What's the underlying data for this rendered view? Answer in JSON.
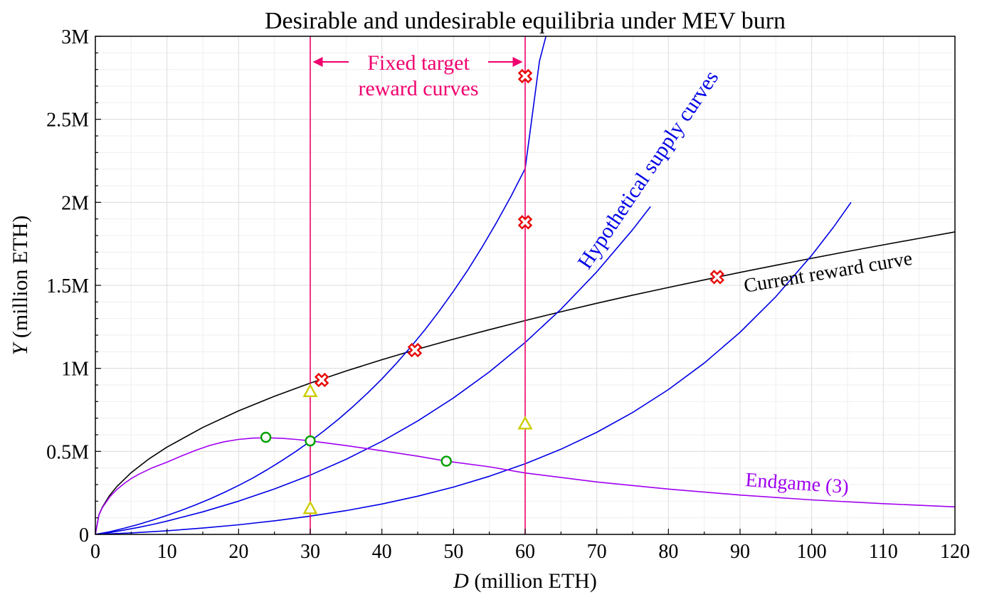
{
  "chart_data": {
    "type": "line",
    "title": "Desirable and undesirable equilibria under MEV burn",
    "xlabel": {
      "var": "D",
      "rest": " (million ETH)"
    },
    "ylabel": {
      "var": "Y",
      "rest": " (million ETH)"
    },
    "xlim": [
      0,
      120
    ],
    "ylim": [
      0,
      3000000
    ],
    "x_ticks": [
      0,
      10,
      20,
      30,
      40,
      50,
      60,
      70,
      80,
      90,
      100,
      110,
      120
    ],
    "x_tick_labels": [
      "0",
      "10",
      "20",
      "30",
      "40",
      "50",
      "60",
      "70",
      "80",
      "90",
      "100",
      "110",
      "120"
    ],
    "y_ticks": [
      0,
      500000,
      1000000,
      1500000,
      2000000,
      2500000,
      3000000
    ],
    "y_tick_labels": [
      "0",
      "0.5M",
      "1M",
      "1.5M",
      "2M",
      "2.5M",
      "3M"
    ],
    "grid": true,
    "colors": {
      "reward": "#000000",
      "supply": "#0000e6",
      "endgame": "#a000f0",
      "target": "#f0006e",
      "undesirable": "#e80000",
      "neutral": "#cccc00",
      "desirable": "#00a000"
    },
    "series": [
      {
        "name": "Current reward curve",
        "key": "reward",
        "color": "#000000",
        "x": [
          0,
          0.5,
          1,
          2,
          3,
          5,
          7.5,
          10,
          15,
          20,
          25,
          30,
          35,
          40,
          45,
          50,
          55,
          60,
          65,
          70,
          75,
          80,
          85,
          90,
          95,
          100,
          105,
          110,
          115,
          120
        ],
        "y": [
          0,
          118000,
          166000,
          235000,
          288000,
          372000,
          455000,
          526000,
          644000,
          744000,
          832000,
          911000,
          984000,
          1052000,
          1116000,
          1176000,
          1233000,
          1288000,
          1341000,
          1392000,
          1441000,
          1487000,
          1533000,
          1578000,
          1621000,
          1663000,
          1704000,
          1744000,
          1783000,
          1822000
        ]
      },
      {
        "name": "",
        "key": "supply1",
        "color": "#0000e6",
        "x": [
          0,
          2,
          4,
          6,
          8,
          10,
          12,
          14,
          16,
          18,
          20,
          22,
          24,
          26,
          28,
          30,
          32,
          34,
          36,
          38,
          40,
          42,
          44,
          46,
          48,
          50,
          52,
          54,
          56,
          58,
          60,
          62,
          62.9
        ],
        "y": [
          0,
          16000,
          37000,
          60000,
          86000,
          114000,
          145000,
          178000,
          214000,
          253000,
          295000,
          340000,
          390000,
          443000,
          500000,
          561000,
          626000,
          696000,
          771000,
          851000,
          937000,
          1029000,
          1127000,
          1232000,
          1345000,
          1465000,
          1593000,
          1731000,
          1878000,
          2035000,
          2203000,
          2850000,
          3000000
        ]
      },
      {
        "name": "",
        "key": "supply2",
        "color": "#0000e6",
        "x": [
          0,
          2,
          4,
          6,
          8,
          10,
          15,
          20,
          25,
          30,
          35,
          40,
          45,
          50,
          55,
          60,
          65,
          70,
          75,
          77.5
        ],
        "y": [
          0,
          11000,
          26000,
          42000,
          60000,
          80000,
          136000,
          200000,
          274000,
          357000,
          452000,
          560000,
          683000,
          822000,
          979000,
          1156000,
          1356000,
          1582000,
          1835000,
          1975000
        ]
      },
      {
        "name": "",
        "key": "supply3",
        "color": "#0000e6",
        "x": [
          0,
          5,
          10,
          15,
          20,
          25,
          30,
          35,
          40,
          45,
          50,
          55,
          60,
          65,
          70,
          75,
          80,
          85,
          90,
          95,
          100,
          103,
          105.5
        ],
        "y": [
          0,
          9000,
          22000,
          38000,
          58000,
          82000,
          110000,
          143000,
          183000,
          230000,
          285000,
          350000,
          425000,
          513000,
          615000,
          734000,
          872000,
          1032000,
          1217000,
          1432000,
          1681000,
          1848000,
          2000000
        ]
      },
      {
        "name": "Endgame (3)",
        "key": "endgame",
        "color": "#a000f0",
        "x": [
          0,
          0.5,
          1,
          2,
          3,
          4,
          5,
          6,
          8,
          10,
          12,
          14,
          16,
          18,
          20,
          22,
          24,
          26,
          28,
          30,
          35,
          40,
          45,
          49,
          55,
          60,
          70,
          80,
          90,
          100,
          110,
          120
        ],
        "y": [
          0,
          117000,
          163000,
          225000,
          270000,
          306000,
          336000,
          361000,
          402000,
          435000,
          472000,
          506000,
          536000,
          558000,
          572000,
          580000,
          582000,
          579000,
          572000,
          563000,
          535000,
          504000,
          471000,
          441000,
          407000,
          370000,
          316000,
          273000,
          237000,
          208000,
          185000,
          166000
        ]
      }
    ],
    "vertical_lines": [
      {
        "x": 30,
        "color": "#f0006e"
      },
      {
        "x": 60,
        "color": "#f0006e"
      }
    ],
    "markers": {
      "undesirable": [
        {
          "x": 31.6,
          "y": 930000
        },
        {
          "x": 44.6,
          "y": 1110000
        },
        {
          "x": 60,
          "y": 1880000
        },
        {
          "x": 60,
          "y": 2760000
        },
        {
          "x": 86.8,
          "y": 1550000
        }
      ],
      "neutral": [
        {
          "x": 30,
          "y": 860000
        },
        {
          "x": 30,
          "y": 155000
        },
        {
          "x": 60,
          "y": 665000
        }
      ],
      "desirable": [
        {
          "x": 23.8,
          "y": 585000
        },
        {
          "x": 30,
          "y": 563000
        },
        {
          "x": 49,
          "y": 441000
        }
      ]
    },
    "annotations": {
      "fixed_target_line1": "Fixed target",
      "fixed_target_line2": "reward curves",
      "supply_label": "Hypothetical supply curves",
      "reward_label": "Current reward curve",
      "endgame_label": "Endgame (3)"
    }
  }
}
